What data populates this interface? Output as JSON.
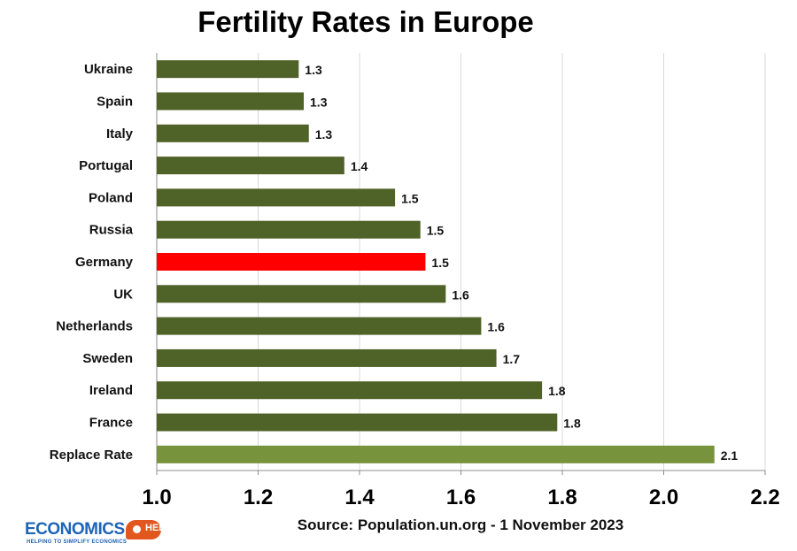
{
  "chart_data": {
    "type": "bar",
    "orientation": "horizontal",
    "title": "Fertility Rates in Europe",
    "categories": [
      "Ukraine",
      "Spain",
      "Italy",
      "Portugal",
      "Poland",
      "Russia",
      "Germany",
      "UK",
      "Netherlands",
      "Sweden",
      "Ireland",
      "France",
      "Replace Rate"
    ],
    "values": [
      1.28,
      1.29,
      1.3,
      1.37,
      1.47,
      1.52,
      1.53,
      1.57,
      1.64,
      1.67,
      1.76,
      1.79,
      2.1
    ],
    "data_labels": [
      "1.3",
      "1.3",
      "1.3",
      "1.4",
      "1.5",
      "1.5",
      "1.5",
      "1.6",
      "1.6",
      "1.7",
      "1.8",
      "1.8",
      "2.1"
    ],
    "bar_colors": [
      "#4f6228",
      "#4f6228",
      "#4f6228",
      "#4f6228",
      "#4f6228",
      "#4f6228",
      "#ff0000",
      "#4f6228",
      "#4f6228",
      "#4f6228",
      "#4f6228",
      "#4f6228",
      "#77933c"
    ],
    "xlim": [
      1.0,
      2.2
    ],
    "xticks": [
      "1.0",
      "1.2",
      "1.4",
      "1.6",
      "1.8",
      "2.0",
      "2.2"
    ],
    "xtick_values": [
      1.0,
      1.2,
      1.4,
      1.6,
      1.8,
      2.0,
      2.2
    ],
    "xlabel": "",
    "ylabel": "",
    "grid": "vertical",
    "legend": "none"
  },
  "source": "Source: Population.un.org - 1 November 2023",
  "logo": {
    "name": "ECONOMICS",
    "badge": "HELP",
    "tagline": "HELPING TO SIMPLIFY ECONOMICS"
  }
}
